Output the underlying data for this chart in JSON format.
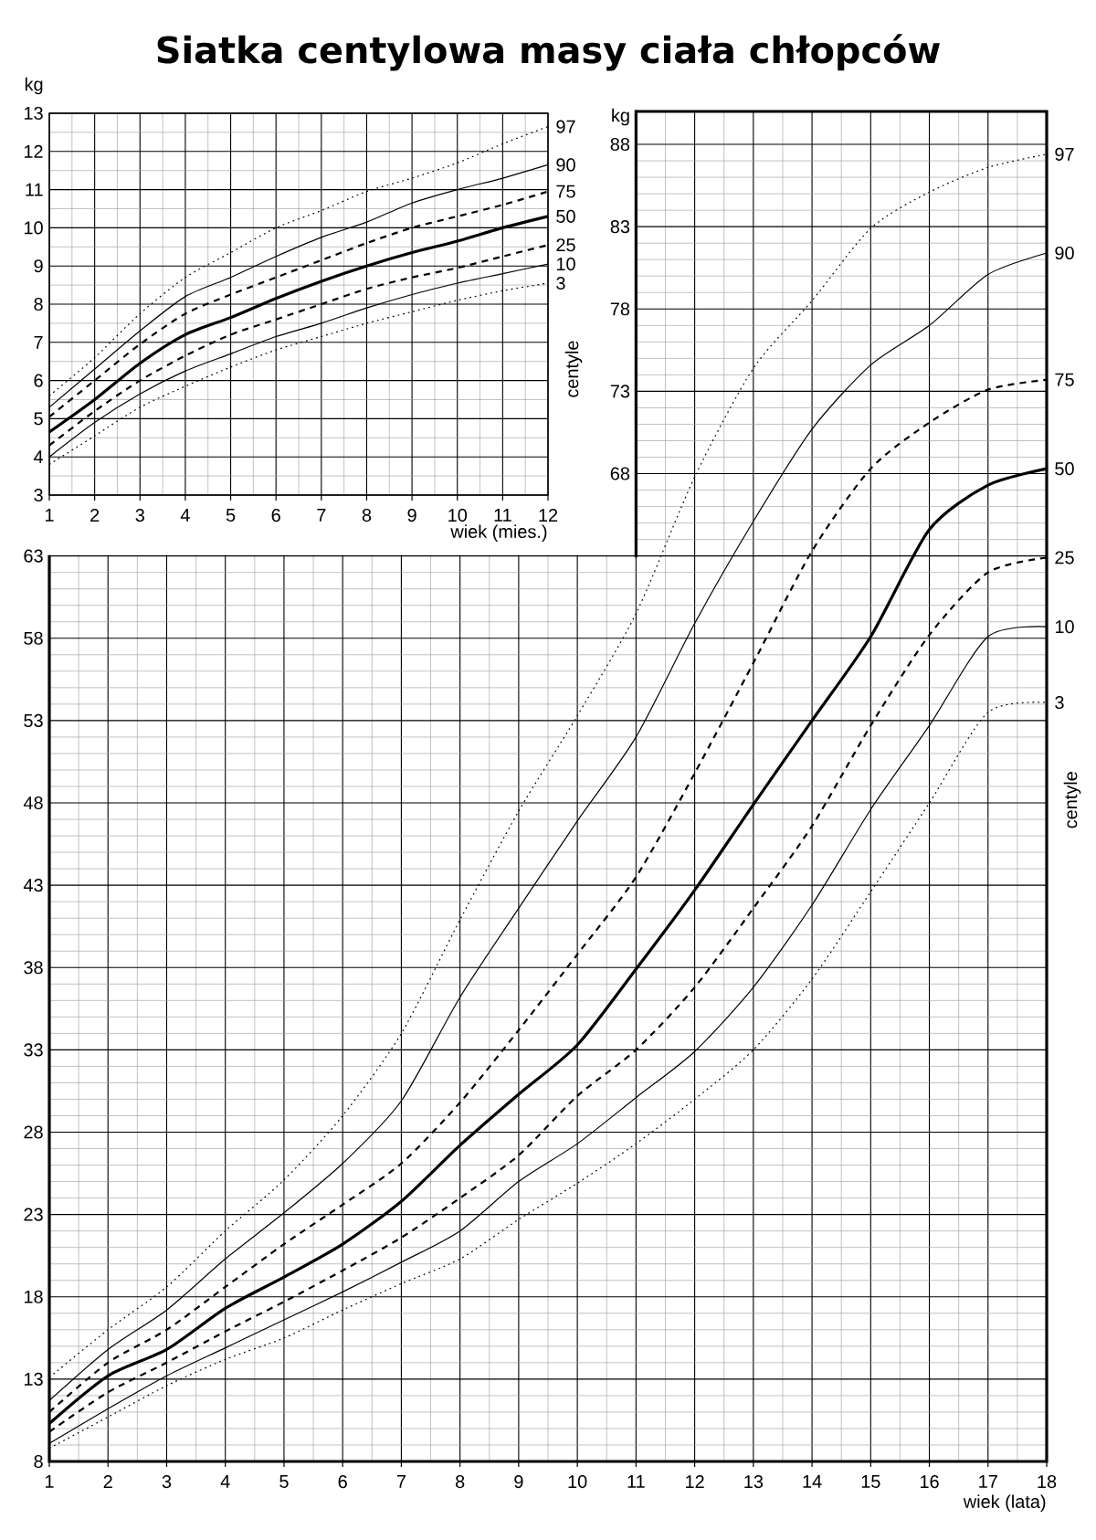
{
  "chart_data": [
    {
      "type": "line",
      "xlabel": "wiek (mies.)",
      "ylabel": "kg",
      "annotations": [
        "centyle"
      ],
      "x": [
        1,
        2,
        3,
        4,
        5,
        6,
        7,
        8,
        9,
        10,
        11,
        12
      ],
      "xlim": [
        1,
        12
      ],
      "ylim": [
        3,
        13
      ],
      "xticks": [
        1,
        2,
        3,
        4,
        5,
        6,
        7,
        8,
        9,
        10,
        11,
        12
      ],
      "yticks": [
        3,
        4,
        5,
        6,
        7,
        8,
        9,
        10,
        11,
        12,
        13
      ],
      "grid": true,
      "legend": false,
      "series": [
        {
          "name": "97",
          "color": "#000000",
          "line_style": "dotted",
          "values": [
            5.6,
            6.6,
            7.75,
            8.7,
            9.35,
            10.0,
            10.45,
            10.95,
            11.3,
            11.7,
            12.2,
            12.65
          ]
        },
        {
          "name": "90",
          "color": "#000000",
          "line_style": "solid",
          "values": [
            5.3,
            6.3,
            7.3,
            8.2,
            8.7,
            9.25,
            9.75,
            10.15,
            10.65,
            11.0,
            11.3,
            11.65
          ]
        },
        {
          "name": "75",
          "color": "#000000",
          "line_style": "dashed",
          "values": [
            5.05,
            6.0,
            6.95,
            7.75,
            8.25,
            8.7,
            9.15,
            9.6,
            10.0,
            10.3,
            10.6,
            10.95
          ]
        },
        {
          "name": "50",
          "color": "#000000",
          "line_style": "solid",
          "values": [
            4.65,
            5.5,
            6.45,
            7.2,
            7.65,
            8.15,
            8.6,
            9.0,
            9.35,
            9.65,
            10.0,
            10.3
          ]
        },
        {
          "name": "25",
          "color": "#000000",
          "line_style": "dashed",
          "values": [
            4.3,
            5.2,
            6.0,
            6.65,
            7.2,
            7.6,
            8.0,
            8.4,
            8.7,
            8.95,
            9.25,
            9.55
          ]
        },
        {
          "name": "10",
          "color": "#000000",
          "line_style": "solid",
          "values": [
            4.0,
            4.9,
            5.65,
            6.25,
            6.7,
            7.15,
            7.5,
            7.9,
            8.25,
            8.55,
            8.8,
            9.05
          ]
        },
        {
          "name": "3",
          "color": "#000000",
          "line_style": "dotted",
          "values": [
            3.8,
            4.55,
            5.3,
            5.85,
            6.35,
            6.8,
            7.15,
            7.5,
            7.8,
            8.1,
            8.35,
            8.55
          ]
        }
      ]
    },
    {
      "type": "line",
      "title": "Siatka centylowa masy ciała chłopców",
      "xlabel": "wiek (lata)",
      "y2label": "kg",
      "annotations": [
        "centyle"
      ],
      "x": [
        1,
        2,
        3,
        4,
        5,
        6,
        7,
        8,
        9,
        10,
        11,
        12,
        13,
        14,
        15,
        16,
        17,
        18
      ],
      "xlim": [
        1,
        18
      ],
      "ylim": [
        8,
        90
      ],
      "xticks": [
        1,
        2,
        3,
        4,
        5,
        6,
        7,
        8,
        9,
        10,
        11,
        12,
        13,
        14,
        15,
        16,
        17,
        18
      ],
      "yticks": [
        8,
        13,
        18,
        23,
        28,
        33,
        38,
        43,
        48,
        53,
        58,
        63
      ],
      "y2lim": [
        8,
        90
      ],
      "y2ticks": [
        68,
        73,
        78,
        83,
        88
      ],
      "grid": true,
      "legend": false,
      "series": [
        {
          "name": "97",
          "color": "#000000",
          "line_style": "dotted",
          "values": [
            13.1,
            16.0,
            18.6,
            22.0,
            25.1,
            29.0,
            34.0,
            40.9,
            47.5,
            53.3,
            59.5,
            67.8,
            74.4,
            78.5,
            82.9,
            85.1,
            86.6,
            87.4
          ]
        },
        {
          "name": "90",
          "color": "#000000",
          "line_style": "solid",
          "values": [
            11.7,
            14.8,
            17.2,
            20.3,
            23.1,
            26.1,
            29.9,
            36.2,
            41.6,
            46.9,
            52.0,
            58.9,
            65.1,
            70.7,
            74.6,
            77.0,
            80.1,
            81.4
          ]
        },
        {
          "name": "75",
          "color": "#000000",
          "line_style": "dashed",
          "values": [
            11.0,
            14.0,
            16.0,
            18.6,
            21.2,
            23.6,
            26.1,
            29.8,
            34.2,
            38.8,
            43.5,
            49.8,
            56.5,
            63.3,
            68.3,
            71.1,
            73.1,
            73.7
          ]
        },
        {
          "name": "50",
          "color": "#000000",
          "line_style": "solid",
          "values": [
            10.3,
            13.2,
            14.8,
            17.3,
            19.2,
            21.2,
            23.8,
            27.2,
            30.3,
            33.3,
            37.9,
            42.7,
            47.9,
            53.0,
            58.1,
            64.6,
            67.3,
            68.3
          ]
        },
        {
          "name": "25",
          "color": "#000000",
          "line_style": "dashed",
          "values": [
            9.8,
            12.2,
            14.0,
            15.9,
            17.7,
            19.6,
            21.6,
            24.0,
            26.6,
            30.2,
            33.0,
            36.8,
            41.6,
            46.6,
            52.7,
            58.2,
            62.0,
            62.9
          ]
        },
        {
          "name": "10",
          "color": "#000000",
          "line_style": "solid",
          "values": [
            9.1,
            11.2,
            13.2,
            14.9,
            16.6,
            18.3,
            20.1,
            22.0,
            25.0,
            27.3,
            30.1,
            32.9,
            36.8,
            41.8,
            47.6,
            52.7,
            58.1,
            58.7
          ]
        },
        {
          "name": "3",
          "color": "#000000",
          "line_style": "dotted",
          "values": [
            8.8,
            10.7,
            12.6,
            14.2,
            15.5,
            17.2,
            18.8,
            20.3,
            22.7,
            24.9,
            27.3,
            30.0,
            33.0,
            37.3,
            42.6,
            48.0,
            53.5,
            54.1
          ]
        }
      ]
    }
  ]
}
